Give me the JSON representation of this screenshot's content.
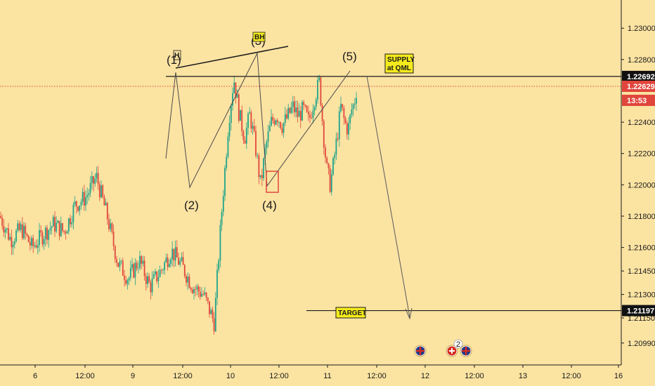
{
  "chart_data": {
    "type": "candlestick",
    "instrument_hint": "",
    "colors": {
      "background": "#fbe3a2",
      "up": "#1fa38a",
      "down": "#e0463c",
      "line": "#1a1a1a",
      "current_price_line": "#e0463c",
      "annotation_fill": "#f5eb1c",
      "arrow": "#5a5a5a"
    },
    "y_axis": {
      "range": [
        1.2085,
        1.2318
      ],
      "ticks": [
        "1.23000",
        "1.22800",
        "1.22692",
        "1.22629",
        "1.22400",
        "1.22200",
        "1.22000",
        "1.21800",
        "1.21600",
        "1.21450",
        "1.21300",
        "1.21197",
        "1.21150",
        "1.20990"
      ],
      "tick_values": [
        1.23,
        1.228,
        1.22692,
        1.22629,
        1.224,
        1.222,
        1.22,
        1.218,
        1.216,
        1.2145,
        1.213,
        1.21197,
        1.2115,
        1.2099
      ],
      "visible_ticks": [
        "1.23000",
        "1.22800",
        "1.22400",
        "1.22200",
        "1.22000",
        "1.21800",
        "1.21600",
        "1.21450",
        "1.21300",
        "1.21150",
        "1.20990"
      ],
      "visible_tick_values": [
        1.23,
        1.228,
        1.224,
        1.222,
        1.22,
        1.218,
        1.216,
        1.2145,
        1.213,
        1.2115,
        1.2099
      ]
    },
    "x_axis": {
      "labels": [
        "6",
        "12:00",
        "9",
        "12:00",
        "10",
        "12:00",
        "11",
        "12:00",
        "12",
        "12:00",
        "13",
        "12:00",
        "16"
      ]
    },
    "price_tags": [
      {
        "label": "1.22692",
        "value": 1.22692,
        "style": "black"
      },
      {
        "label": "1.22629",
        "value": 1.22629,
        "style": "red"
      },
      {
        "label": "13:53",
        "value": 1.2254,
        "style": "red"
      },
      {
        "label": "1.21197",
        "value": 1.21197,
        "style": "black"
      }
    ],
    "levels": [
      {
        "name": "supply",
        "value": 1.22692,
        "label_lines": [
          "SUPPLY",
          "at QML"
        ]
      },
      {
        "name": "target",
        "value": 1.21197,
        "label_lines": [
          "TARGET"
        ]
      }
    ],
    "current_price": 1.22629,
    "wave_labels": [
      {
        "text": "(1)",
        "price": 1.2292
      },
      {
        "text": "(2)",
        "price": 1.2184
      },
      {
        "text": "(3)",
        "price": 1.2316
      },
      {
        "text": "(4)",
        "price": 1.2183
      },
      {
        "text": "(5)",
        "price": 1.2297
      }
    ],
    "overlay_markers": [
      "H",
      "BH"
    ],
    "event_flags": [
      "uk-flag",
      "swiss-flag",
      "uk-flag"
    ],
    "event_badge_count": "2",
    "series_path": [
      [
        0.0,
        1.218
      ],
      [
        0.03,
        1.2165
      ],
      [
        0.06,
        1.2172
      ],
      [
        0.09,
        1.216
      ],
      [
        0.12,
        1.2168
      ],
      [
        0.15,
        1.2175
      ],
      [
        0.18,
        1.217
      ],
      [
        0.21,
        1.2187
      ],
      [
        0.24,
        1.2192
      ],
      [
        0.27,
        1.2205
      ],
      [
        0.3,
        1.218
      ],
      [
        0.33,
        1.215
      ],
      [
        0.36,
        1.214
      ],
      [
        0.39,
        1.2152
      ],
      [
        0.42,
        1.2135
      ],
      [
        0.45,
        1.2145
      ],
      [
        0.48,
        1.2158
      ],
      [
        0.51,
        1.2148
      ],
      [
        0.54,
        1.2135
      ],
      [
        0.57,
        1.213
      ],
      [
        0.6,
        1.2112
      ],
      [
        0.62,
        1.218
      ],
      [
        0.64,
        1.224
      ],
      [
        0.655,
        1.2268
      ],
      [
        0.67,
        1.2245
      ],
      [
        0.685,
        1.223
      ],
      [
        0.7,
        1.2245
      ],
      [
        0.715,
        1.2225
      ],
      [
        0.73,
        1.22
      ],
      [
        0.745,
        1.2225
      ],
      [
        0.76,
        1.224
      ],
      [
        0.775,
        1.2245
      ],
      [
        0.79,
        1.2238
      ],
      [
        0.805,
        1.2243
      ],
      [
        0.82,
        1.225
      ],
      [
        0.835,
        1.2244
      ],
      [
        0.85,
        1.2248
      ],
      [
        0.865,
        1.224
      ],
      [
        0.88,
        1.2255
      ],
      [
        0.895,
        1.2266
      ],
      [
        0.905,
        1.2235
      ],
      [
        0.915,
        1.221
      ],
      [
        0.925,
        1.22
      ],
      [
        0.935,
        1.2215
      ],
      [
        0.945,
        1.2232
      ],
      [
        0.955,
        1.225
      ],
      [
        0.965,
        1.224
      ],
      [
        0.975,
        1.2235
      ],
      [
        0.985,
        1.2248
      ],
      [
        0.992,
        1.2252
      ],
      [
        1.0,
        1.2263
      ]
    ]
  }
}
